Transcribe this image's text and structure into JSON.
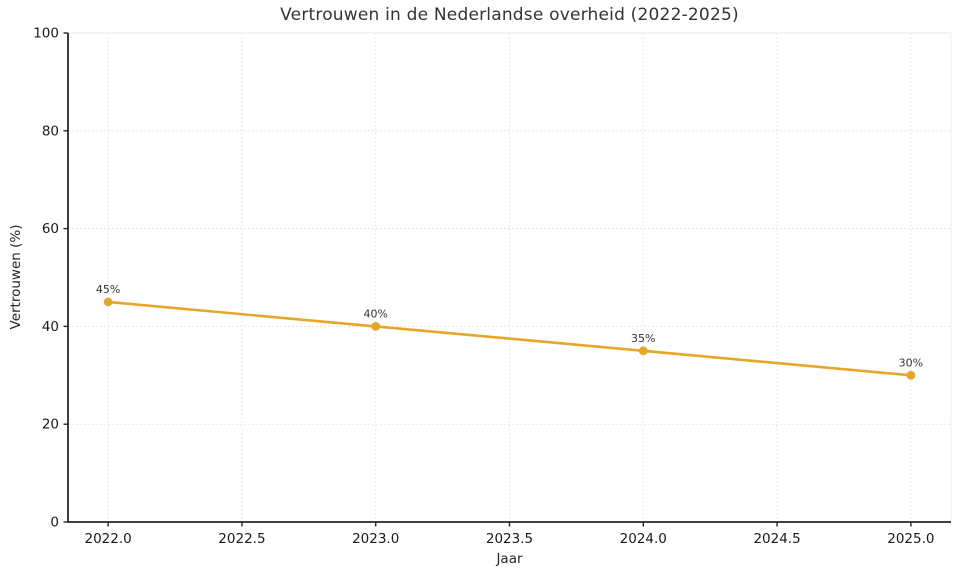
{
  "title": "Vertrouwen in de Nederlandse overheid (2022-2025)",
  "chart_data": {
    "type": "line",
    "title": "Vertrouwen in de Nederlandse overheid (2022-2025)",
    "xlabel": "Jaar",
    "ylabel": "Vertrouwen (%)",
    "x": [
      2022,
      2023,
      2024,
      2025
    ],
    "values": [
      45,
      40,
      35,
      30
    ],
    "point_labels": [
      "45%",
      "40%",
      "35%",
      "30%"
    ],
    "series_name": "Vertrouwen",
    "xlim": [
      2021.85,
      2025.15
    ],
    "ylim": [
      0,
      100
    ],
    "xticks": [
      2022.0,
      2022.5,
      2023.0,
      2023.5,
      2024.0,
      2024.5,
      2025.0
    ],
    "xtick_labels": [
      "2022.0",
      "2022.5",
      "2023.0",
      "2023.5",
      "2024.0",
      "2024.5",
      "2025.0"
    ],
    "yticks": [
      0,
      20,
      40,
      60,
      80,
      100
    ],
    "ytick_labels": [
      "0",
      "20",
      "40",
      "60",
      "80",
      "100"
    ],
    "grid": true,
    "grid_style": "dotted",
    "legend_position": "none",
    "line_color": "#E4A62B",
    "marker_color": "#E4A62B",
    "spine_color": "#262626",
    "grid_color": "#E0E0E0",
    "tick_text_color": "#1a1a1a",
    "point_label_color": "#333333",
    "background_color": "#ffffff"
  }
}
